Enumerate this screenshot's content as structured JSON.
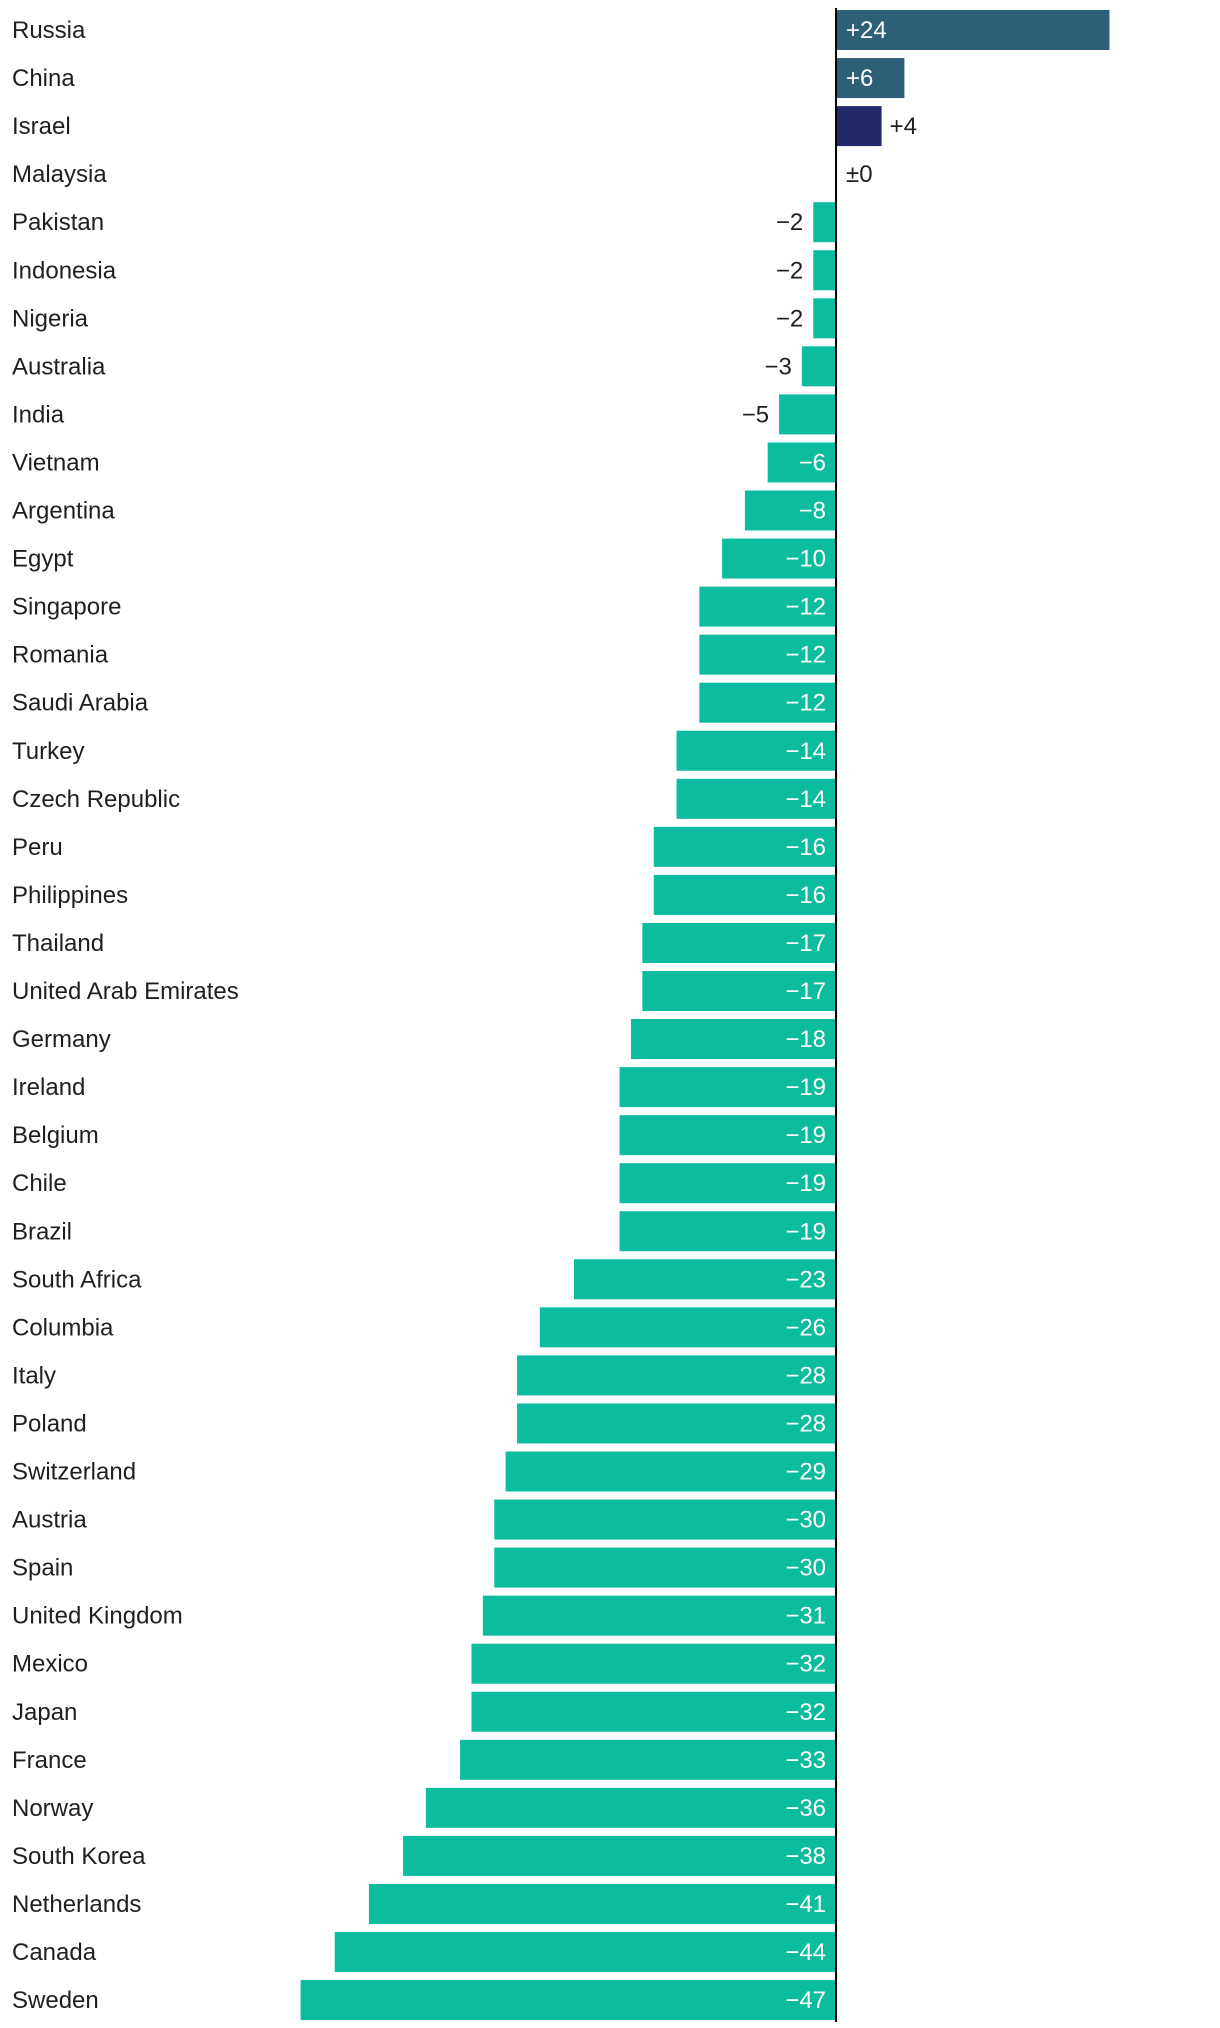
{
  "chart_data": {
    "type": "bar",
    "orientation": "horizontal",
    "title": "",
    "xlabel": "",
    "ylabel": "",
    "xlim": [
      -51,
      33
    ],
    "grid": false,
    "legend": "none",
    "colors": {
      "negative": "#0bbc9f",
      "positive": "#2d5f76",
      "highlight": "#222a6b",
      "axis": "#000000",
      "label_dark": "#1f1f1f",
      "label_light": "#ffffff"
    },
    "highlight_categories": [
      "Israel"
    ],
    "categories": [
      "Russia",
      "China",
      "Israel",
      "Malaysia",
      "Pakistan",
      "Indonesia",
      "Nigeria",
      "Australia",
      "India",
      "Vietnam",
      "Argentina",
      "Egypt",
      "Singapore",
      "Romania",
      "Saudi Arabia",
      "Turkey",
      "Czech Republic",
      "Peru",
      "Philippines",
      "Thailand",
      "United Arab Emirates",
      "Germany",
      "Ireland",
      "Belgium",
      "Chile",
      "Brazil",
      "South Africa",
      "Columbia",
      "Italy",
      "Poland",
      "Switzerland",
      "Austria",
      "Spain",
      "United Kingdom",
      "Mexico",
      "Japan",
      "France",
      "Norway",
      "South Korea",
      "Netherlands",
      "Canada",
      "Sweden"
    ],
    "values": [
      24,
      6,
      4,
      0,
      -2,
      -2,
      -2,
      -3,
      -5,
      -6,
      -8,
      -10,
      -12,
      -12,
      -12,
      -14,
      -14,
      -16,
      -16,
      -17,
      -17,
      -18,
      -19,
      -19,
      -19,
      -19,
      -23,
      -26,
      -28,
      -28,
      -29,
      -30,
      -30,
      -31,
      -32,
      -32,
      -33,
      -36,
      -38,
      -41,
      -44,
      -47
    ],
    "value_labels": [
      "+24",
      "+6",
      "+4",
      "±0",
      "−2",
      "−2",
      "−2",
      "−3",
      "−5",
      "−6",
      "−8",
      "−10",
      "−12",
      "−12",
      "−12",
      "−14",
      "−14",
      "−16",
      "−16",
      "−17",
      "−17",
      "−18",
      "−19",
      "−19",
      "−19",
      "−19",
      "−23",
      "−26",
      "−28",
      "−28",
      "−29",
      "−30",
      "−30",
      "−31",
      "−32",
      "−32",
      "−33",
      "−36",
      "−38",
      "−41",
      "−44",
      "−47"
    ]
  }
}
